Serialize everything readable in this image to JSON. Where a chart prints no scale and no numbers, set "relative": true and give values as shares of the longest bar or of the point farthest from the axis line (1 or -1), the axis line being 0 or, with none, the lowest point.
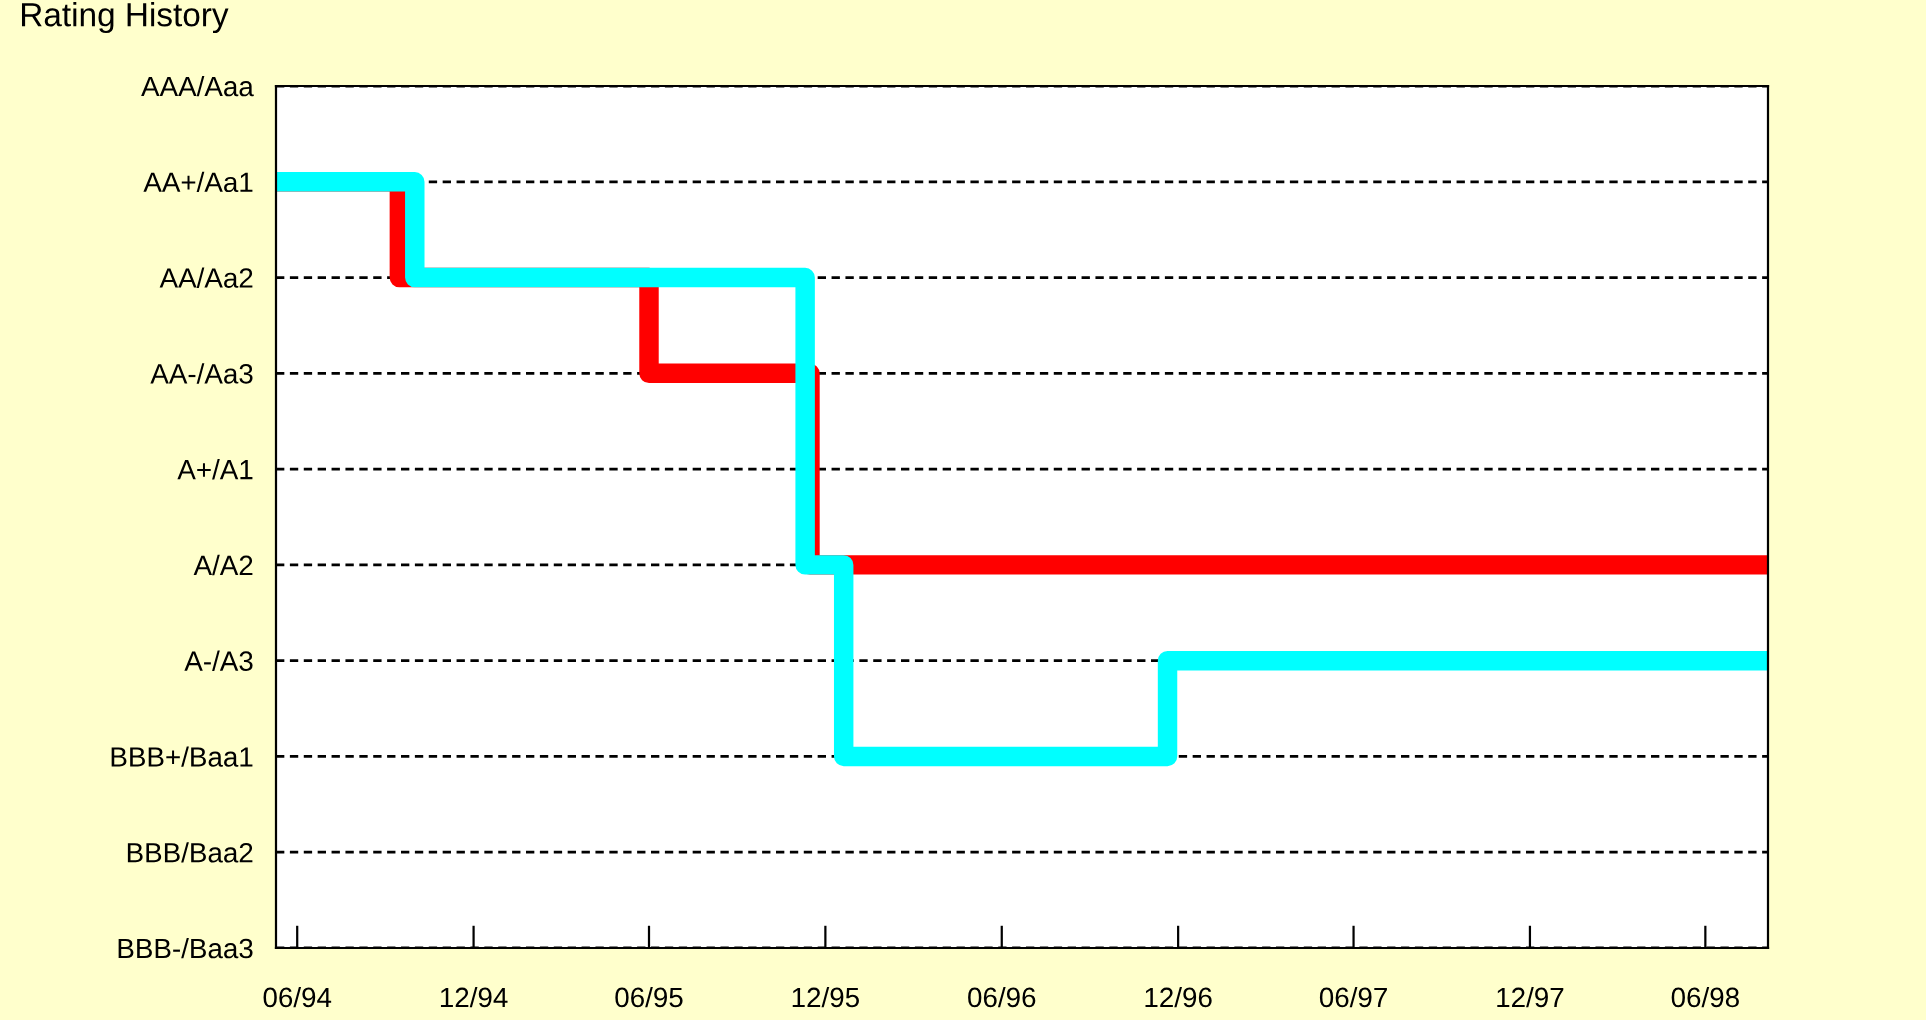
{
  "chart_data": {
    "type": "step",
    "title": "Rating History",
    "relative": true,
    "xlim": [
      "1994-05-10",
      "1998-08-05"
    ],
    "xticks": [
      {
        "value": "1994-06-01",
        "label": "06/94"
      },
      {
        "value": "1994-12-01",
        "label": "12/94"
      },
      {
        "value": "1995-06-01",
        "label": "06/95"
      },
      {
        "value": "1995-12-01",
        "label": "12/95"
      },
      {
        "value": "1996-06-01",
        "label": "06/96"
      },
      {
        "value": "1996-12-01",
        "label": "12/96"
      },
      {
        "value": "1997-06-01",
        "label": "06/97"
      },
      {
        "value": "1997-12-01",
        "label": "12/97"
      },
      {
        "value": "1998-06-01",
        "label": "06/98"
      }
    ],
    "annotations": [
      "AAA/Aaa",
      "AA+/Aa1",
      "AA/Aa2",
      "AA-/Aa3",
      "A+/A1",
      "A/A2",
      "A-/A3",
      "BBB+/Baa1",
      "BBB/Baa2",
      "BBB-/Baa3"
    ],
    "grid": "y",
    "line_style": "solid",
    "series": [
      {
        "color": "#ff0000",
        "x": [
          "1994-05-10",
          "1994-09-15",
          "1995-06-01",
          "1995-11-15",
          "1998-08-05"
        ],
        "values": [
          1,
          0.875,
          0.75,
          0.5,
          0.5
        ]
      },
      {
        "color": "#00ffff",
        "x": [
          "1994-05-10",
          "1994-10-01",
          "1995-11-10",
          "1995-12-20",
          "1996-11-20",
          "1998-08-05"
        ],
        "values": [
          1,
          0.875,
          0.5,
          0.25,
          0.375,
          0.375
        ]
      }
    ]
  }
}
